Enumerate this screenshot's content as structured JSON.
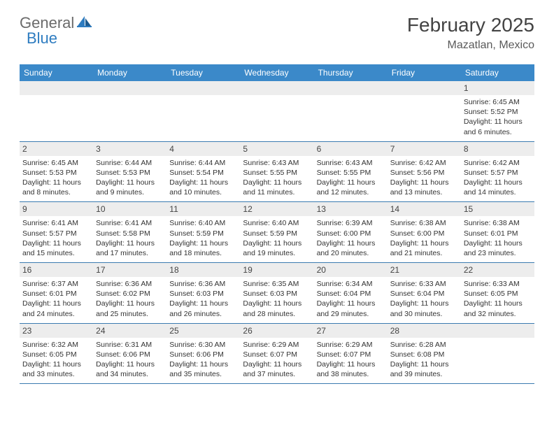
{
  "logo": {
    "general": "General",
    "blue": "Blue"
  },
  "title": "February 2025",
  "location": "Mazatlan, Mexico",
  "colors": {
    "header_bg": "#3b89c9",
    "header_text": "#ffffff",
    "row_border": "#3b7bb0",
    "daynum_bg": "#ededed",
    "logo_gray": "#6b6b6b",
    "logo_blue": "#2e7cc0",
    "title_color": "#434343"
  },
  "day_names": [
    "Sunday",
    "Monday",
    "Tuesday",
    "Wednesday",
    "Thursday",
    "Friday",
    "Saturday"
  ],
  "weeks": [
    [
      {
        "n": "",
        "sr": "",
        "ss": "",
        "dl": ""
      },
      {
        "n": "",
        "sr": "",
        "ss": "",
        "dl": ""
      },
      {
        "n": "",
        "sr": "",
        "ss": "",
        "dl": ""
      },
      {
        "n": "",
        "sr": "",
        "ss": "",
        "dl": ""
      },
      {
        "n": "",
        "sr": "",
        "ss": "",
        "dl": ""
      },
      {
        "n": "",
        "sr": "",
        "ss": "",
        "dl": ""
      },
      {
        "n": "1",
        "sr": "Sunrise: 6:45 AM",
        "ss": "Sunset: 5:52 PM",
        "dl": "Daylight: 11 hours and 6 minutes."
      }
    ],
    [
      {
        "n": "2",
        "sr": "Sunrise: 6:45 AM",
        "ss": "Sunset: 5:53 PM",
        "dl": "Daylight: 11 hours and 8 minutes."
      },
      {
        "n": "3",
        "sr": "Sunrise: 6:44 AM",
        "ss": "Sunset: 5:53 PM",
        "dl": "Daylight: 11 hours and 9 minutes."
      },
      {
        "n": "4",
        "sr": "Sunrise: 6:44 AM",
        "ss": "Sunset: 5:54 PM",
        "dl": "Daylight: 11 hours and 10 minutes."
      },
      {
        "n": "5",
        "sr": "Sunrise: 6:43 AM",
        "ss": "Sunset: 5:55 PM",
        "dl": "Daylight: 11 hours and 11 minutes."
      },
      {
        "n": "6",
        "sr": "Sunrise: 6:43 AM",
        "ss": "Sunset: 5:55 PM",
        "dl": "Daylight: 11 hours and 12 minutes."
      },
      {
        "n": "7",
        "sr": "Sunrise: 6:42 AM",
        "ss": "Sunset: 5:56 PM",
        "dl": "Daylight: 11 hours and 13 minutes."
      },
      {
        "n": "8",
        "sr": "Sunrise: 6:42 AM",
        "ss": "Sunset: 5:57 PM",
        "dl": "Daylight: 11 hours and 14 minutes."
      }
    ],
    [
      {
        "n": "9",
        "sr": "Sunrise: 6:41 AM",
        "ss": "Sunset: 5:57 PM",
        "dl": "Daylight: 11 hours and 15 minutes."
      },
      {
        "n": "10",
        "sr": "Sunrise: 6:41 AM",
        "ss": "Sunset: 5:58 PM",
        "dl": "Daylight: 11 hours and 17 minutes."
      },
      {
        "n": "11",
        "sr": "Sunrise: 6:40 AM",
        "ss": "Sunset: 5:59 PM",
        "dl": "Daylight: 11 hours and 18 minutes."
      },
      {
        "n": "12",
        "sr": "Sunrise: 6:40 AM",
        "ss": "Sunset: 5:59 PM",
        "dl": "Daylight: 11 hours and 19 minutes."
      },
      {
        "n": "13",
        "sr": "Sunrise: 6:39 AM",
        "ss": "Sunset: 6:00 PM",
        "dl": "Daylight: 11 hours and 20 minutes."
      },
      {
        "n": "14",
        "sr": "Sunrise: 6:38 AM",
        "ss": "Sunset: 6:00 PM",
        "dl": "Daylight: 11 hours and 21 minutes."
      },
      {
        "n": "15",
        "sr": "Sunrise: 6:38 AM",
        "ss": "Sunset: 6:01 PM",
        "dl": "Daylight: 11 hours and 23 minutes."
      }
    ],
    [
      {
        "n": "16",
        "sr": "Sunrise: 6:37 AM",
        "ss": "Sunset: 6:01 PM",
        "dl": "Daylight: 11 hours and 24 minutes."
      },
      {
        "n": "17",
        "sr": "Sunrise: 6:36 AM",
        "ss": "Sunset: 6:02 PM",
        "dl": "Daylight: 11 hours and 25 minutes."
      },
      {
        "n": "18",
        "sr": "Sunrise: 6:36 AM",
        "ss": "Sunset: 6:03 PM",
        "dl": "Daylight: 11 hours and 26 minutes."
      },
      {
        "n": "19",
        "sr": "Sunrise: 6:35 AM",
        "ss": "Sunset: 6:03 PM",
        "dl": "Daylight: 11 hours and 28 minutes."
      },
      {
        "n": "20",
        "sr": "Sunrise: 6:34 AM",
        "ss": "Sunset: 6:04 PM",
        "dl": "Daylight: 11 hours and 29 minutes."
      },
      {
        "n": "21",
        "sr": "Sunrise: 6:33 AM",
        "ss": "Sunset: 6:04 PM",
        "dl": "Daylight: 11 hours and 30 minutes."
      },
      {
        "n": "22",
        "sr": "Sunrise: 6:33 AM",
        "ss": "Sunset: 6:05 PM",
        "dl": "Daylight: 11 hours and 32 minutes."
      }
    ],
    [
      {
        "n": "23",
        "sr": "Sunrise: 6:32 AM",
        "ss": "Sunset: 6:05 PM",
        "dl": "Daylight: 11 hours and 33 minutes."
      },
      {
        "n": "24",
        "sr": "Sunrise: 6:31 AM",
        "ss": "Sunset: 6:06 PM",
        "dl": "Daylight: 11 hours and 34 minutes."
      },
      {
        "n": "25",
        "sr": "Sunrise: 6:30 AM",
        "ss": "Sunset: 6:06 PM",
        "dl": "Daylight: 11 hours and 35 minutes."
      },
      {
        "n": "26",
        "sr": "Sunrise: 6:29 AM",
        "ss": "Sunset: 6:07 PM",
        "dl": "Daylight: 11 hours and 37 minutes."
      },
      {
        "n": "27",
        "sr": "Sunrise: 6:29 AM",
        "ss": "Sunset: 6:07 PM",
        "dl": "Daylight: 11 hours and 38 minutes."
      },
      {
        "n": "28",
        "sr": "Sunrise: 6:28 AM",
        "ss": "Sunset: 6:08 PM",
        "dl": "Daylight: 11 hours and 39 minutes."
      },
      {
        "n": "",
        "sr": "",
        "ss": "",
        "dl": ""
      }
    ]
  ]
}
